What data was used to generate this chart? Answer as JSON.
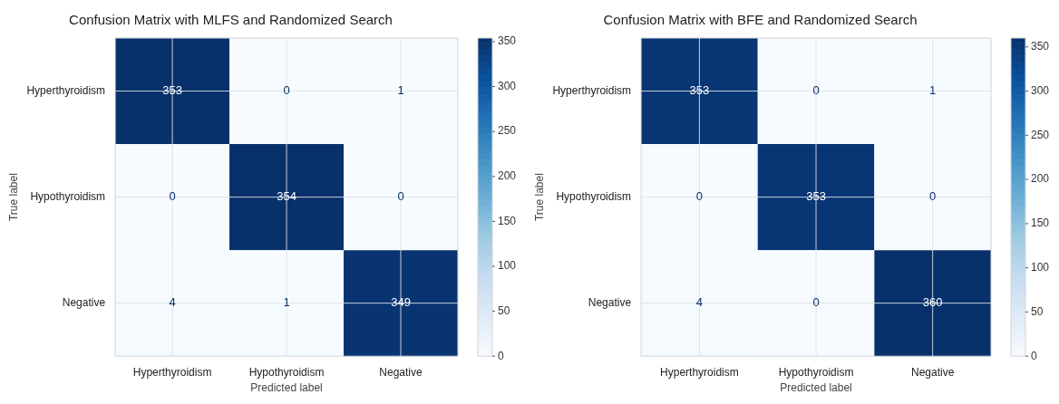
{
  "chart_data": [
    {
      "type": "heatmap",
      "title": "Confusion Matrix with MLFS and Randomized Search",
      "xlabel": "Predicted label",
      "ylabel": "True label",
      "categories": [
        "Hyperthyroidism",
        "Hypothyroidism",
        "Negative"
      ],
      "y_categories": [
        "Hyperthyroidism",
        "Hypothyroidism",
        "Negative"
      ],
      "cells": [
        [
          353,
          0,
          1
        ],
        [
          0,
          354,
          0
        ],
        [
          4,
          1,
          349
        ]
      ],
      "clim": [
        0,
        354
      ],
      "cticks": [
        0,
        50,
        100,
        150,
        200,
        250,
        300,
        350
      ],
      "grid": true,
      "data_labels": true
    },
    {
      "type": "heatmap",
      "title": "Confusion Matrix with BFE and Randomized Search",
      "xlabel": "Predicted label",
      "ylabel": "True label",
      "categories": [
        "Hyperthyroidism",
        "Hypothyroidism",
        "Negative"
      ],
      "y_categories": [
        "Hyperthyroidism",
        "Hypothyroidism",
        "Negative"
      ],
      "cells": [
        [
          353,
          0,
          1
        ],
        [
          0,
          353,
          0
        ],
        [
          4,
          0,
          360
        ]
      ],
      "clim": [
        0,
        360
      ],
      "cticks": [
        0,
        50,
        100,
        150,
        200,
        250,
        300,
        350
      ],
      "grid": true,
      "data_labels": true
    }
  ]
}
